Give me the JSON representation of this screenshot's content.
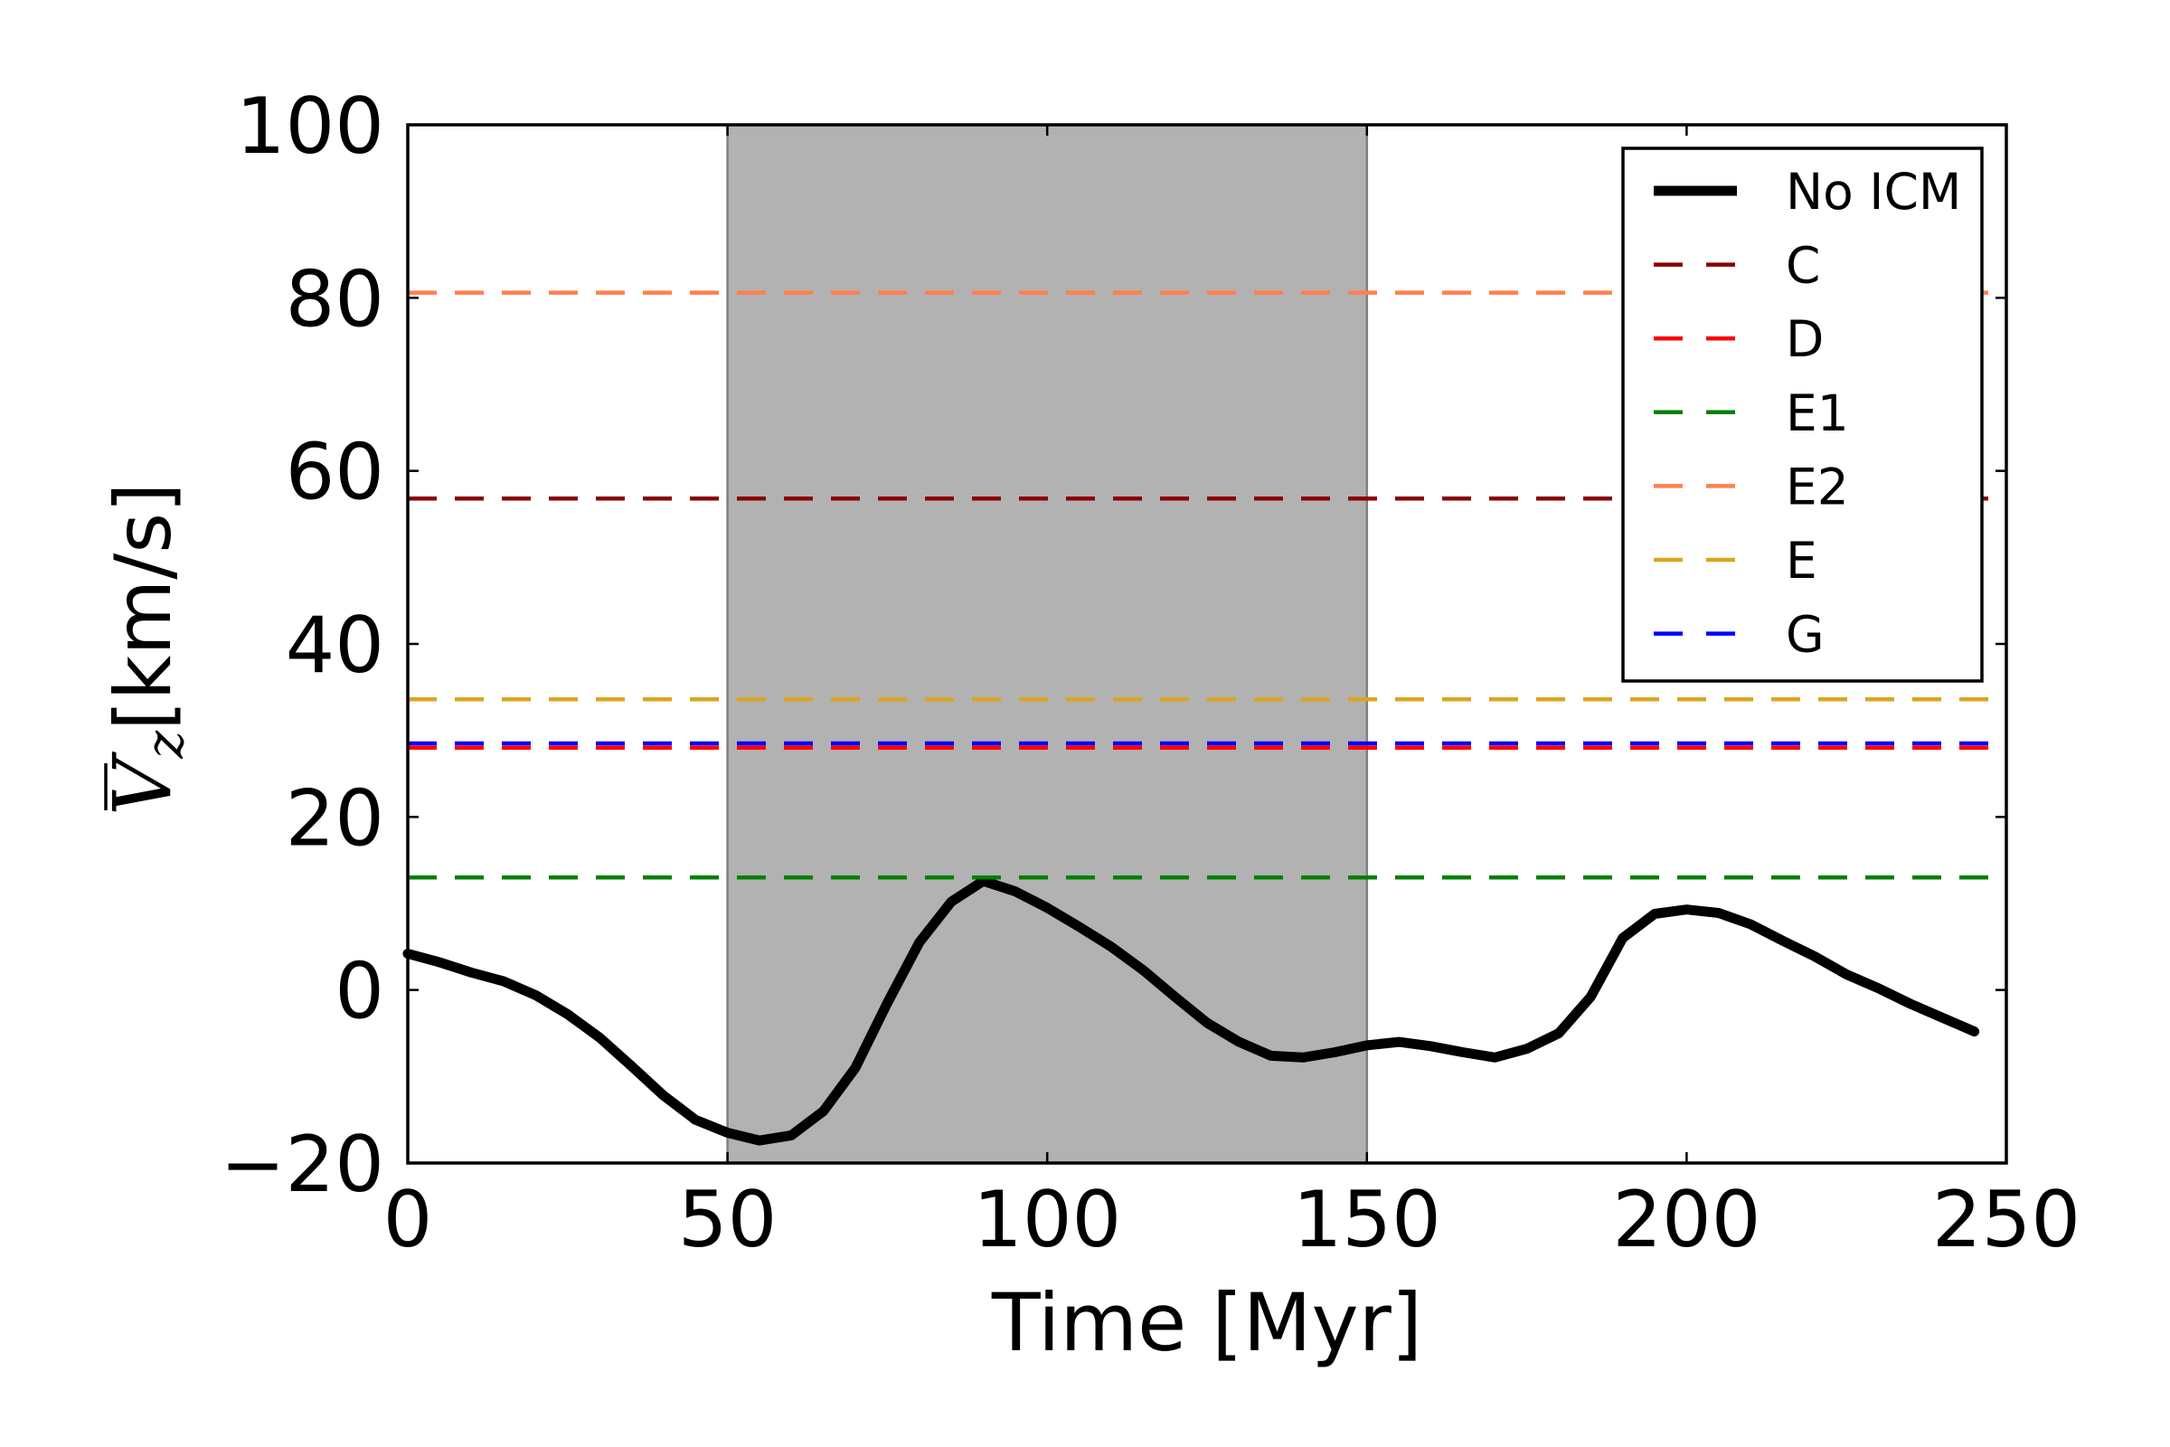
{
  "chart_data": {
    "type": "line",
    "xlabel": "Time [Myr]",
    "ylabel": {
      "symbol": "V",
      "subscript": "z",
      "unit": "[km/s]"
    },
    "xlim": [
      0,
      250
    ],
    "ylim": [
      -20,
      100
    ],
    "xticks": [
      0,
      50,
      100,
      150,
      200,
      250
    ],
    "xtick_labels": [
      "0",
      "50",
      "100",
      "150",
      "200",
      "250"
    ],
    "yticks": [
      -20,
      0,
      20,
      40,
      60,
      80,
      100
    ],
    "ytick_labels": [
      "−20",
      "0",
      "20",
      "40",
      "60",
      "80",
      "100"
    ],
    "grid": false,
    "legend_position": "top-right",
    "shaded_region": {
      "x": [
        50,
        150
      ],
      "color": "#b2b2b2",
      "edge_color": "#808080"
    },
    "series": [
      {
        "name": "No ICM",
        "color": "#000000",
        "dashed": false,
        "x": [
          0,
          5,
          10,
          15,
          20,
          25,
          30,
          35,
          40,
          45,
          50,
          55,
          60,
          65,
          70,
          75,
          80,
          85,
          90,
          95,
          100,
          105,
          110,
          115,
          120,
          125,
          130,
          135,
          140,
          145,
          150,
          155,
          160,
          165,
          170,
          175,
          180,
          185,
          190,
          195,
          200,
          205,
          210,
          215,
          220,
          225,
          230,
          235,
          240,
          245
        ],
        "y": [
          4.2,
          3.2,
          2.0,
          1.0,
          -0.6,
          -2.8,
          -5.5,
          -8.8,
          -12.2,
          -15.0,
          -16.5,
          -17.4,
          -16.8,
          -14.0,
          -9.0,
          -1.5,
          5.5,
          10.2,
          12.6,
          11.4,
          9.5,
          7.3,
          5.0,
          2.3,
          -0.8,
          -3.8,
          -6.0,
          -7.6,
          -7.8,
          -7.2,
          -6.4,
          -6.0,
          -6.5,
          -7.2,
          -7.8,
          -6.8,
          -5.0,
          -0.8,
          6.0,
          8.8,
          9.3,
          8.9,
          7.6,
          5.7,
          3.9,
          1.8,
          0.2,
          -1.6,
          -3.2,
          -4.8
        ]
      },
      {
        "name": "C",
        "color": "#8b0000",
        "dashed": true,
        "hline": 56.8
      },
      {
        "name": "D",
        "color": "#ff0000",
        "dashed": true,
        "hline": 28.0
      },
      {
        "name": "E1",
        "color": "#008000",
        "dashed": true,
        "hline": 13.0
      },
      {
        "name": "E2",
        "color": "#ff7f50",
        "dashed": true,
        "hline": 80.6
      },
      {
        "name": "E",
        "color": "#daa520",
        "dashed": true,
        "hline": 33.6
      },
      {
        "name": "G",
        "color": "#0000ff",
        "dashed": true,
        "hline": 28.5
      }
    ]
  }
}
